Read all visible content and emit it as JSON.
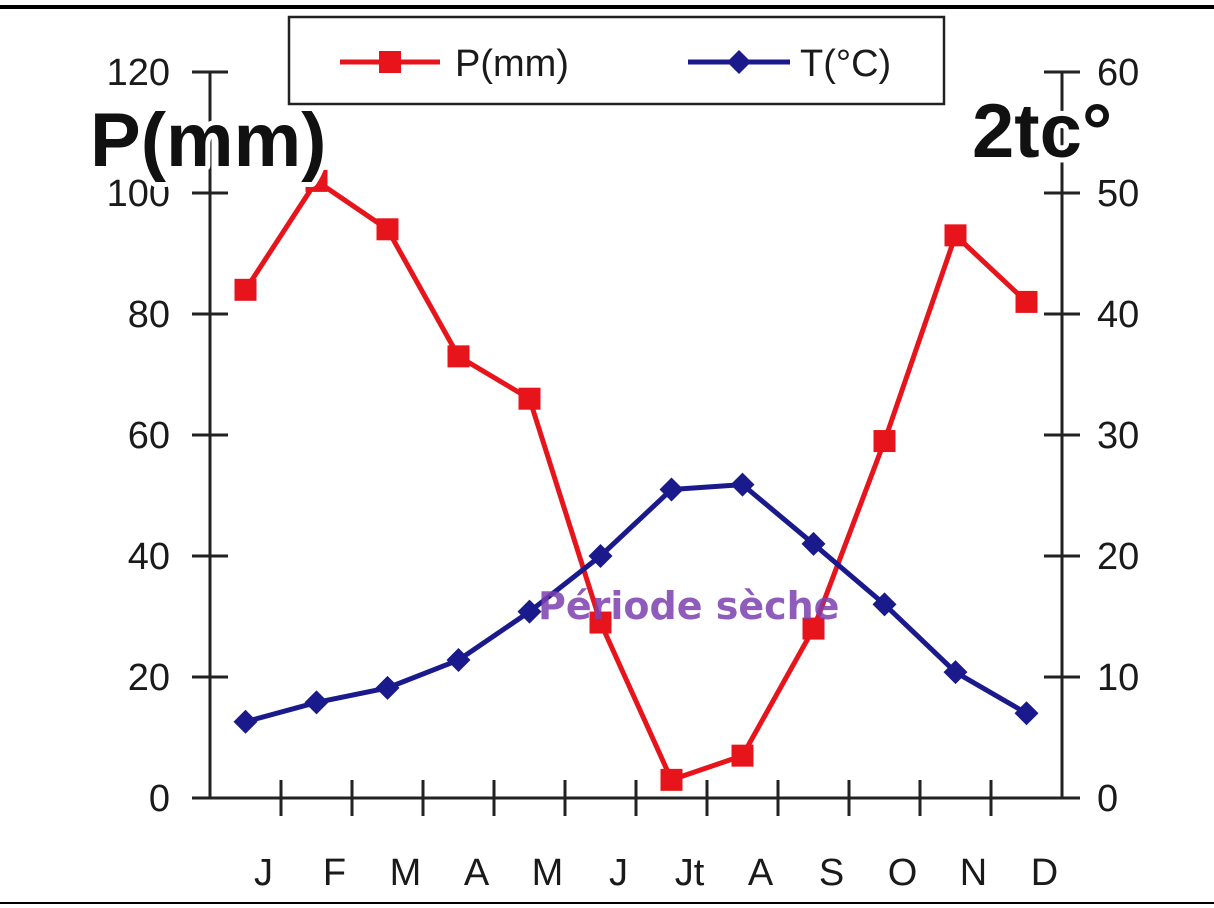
{
  "chart_data": {
    "type": "line",
    "categories": [
      "J",
      "F",
      "M",
      "A",
      "M",
      "J",
      "Jt",
      "A",
      "S",
      "O",
      "N",
      "D"
    ],
    "series": [
      {
        "name": "P(mm)",
        "axis": "left",
        "color": "#e8141b",
        "marker": "square",
        "values": [
          84,
          102,
          94,
          73,
          66,
          29,
          3,
          7,
          28,
          59,
          93,
          82
        ]
      },
      {
        "name": "T(°C)",
        "axis": "right",
        "color": "#1a1a8c",
        "marker": "diamond",
        "values": [
          6.3,
          7.9,
          9.1,
          11.4,
          15.4,
          20,
          25.5,
          25.9,
          21,
          16,
          10.4,
          7
        ]
      }
    ],
    "left_axis": {
      "label": "P(mm)",
      "ylim": [
        0,
        120
      ],
      "ticks": [
        0,
        20,
        40,
        60,
        80,
        100,
        120
      ]
    },
    "right_axis": {
      "label": "2tc°",
      "ylim": [
        0,
        60
      ],
      "ticks": [
        0,
        10,
        20,
        30,
        40,
        50,
        60
      ]
    },
    "legend": {
      "placement": "top-center",
      "entries": [
        "P(mm)",
        "T(°C)"
      ]
    },
    "annotations": [
      {
        "text": "Période sèche",
        "color": "#7b3fb0"
      }
    ],
    "grid": false
  }
}
